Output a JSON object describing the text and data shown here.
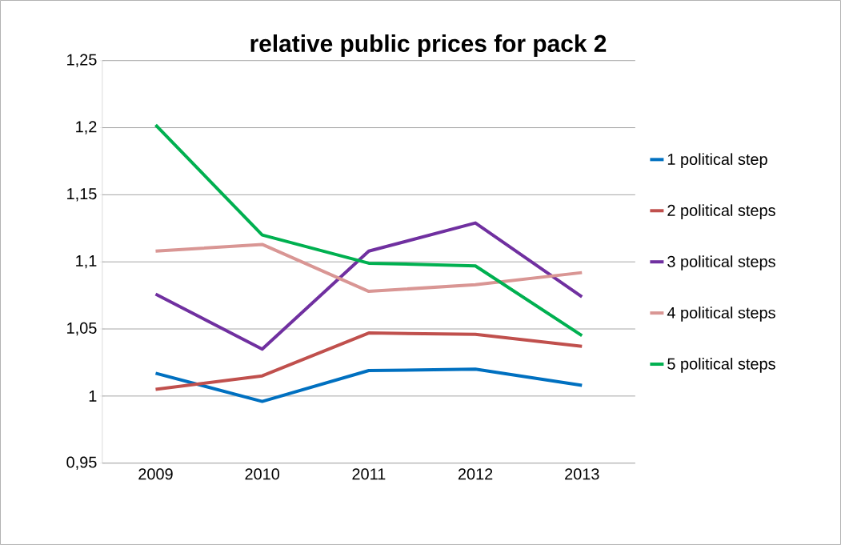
{
  "chart_data": {
    "type": "line",
    "title": "relative public prices for pack 2",
    "categories": [
      "2009",
      "2010",
      "2011",
      "2012",
      "2013"
    ],
    "series": [
      {
        "name": "1 political step",
        "color": "#0070c0",
        "values": [
          1.017,
          0.996,
          1.019,
          1.02,
          1.008
        ]
      },
      {
        "name": "2 political steps",
        "color": "#c0504d",
        "values": [
          1.005,
          1.015,
          1.047,
          1.046,
          1.037
        ]
      },
      {
        "name": "3 political steps",
        "color": "#7030a0",
        "values": [
          1.076,
          1.035,
          1.108,
          1.129,
          1.074
        ]
      },
      {
        "name": "4 political steps",
        "color": "#d99694",
        "values": [
          1.108,
          1.113,
          1.078,
          1.083,
          1.092
        ]
      },
      {
        "name": "5 political steps",
        "color": "#00b050",
        "values": [
          1.202,
          1.12,
          1.099,
          1.097,
          1.045
        ]
      }
    ],
    "ylim": [
      0.95,
      1.25
    ],
    "yticks": [
      {
        "value": 0.95,
        "label": "0,95"
      },
      {
        "value": 1.0,
        "label": "1"
      },
      {
        "value": 1.05,
        "label": "1,05"
      },
      {
        "value": 1.1,
        "label": "1,1"
      },
      {
        "value": 1.15,
        "label": "1,15"
      },
      {
        "value": 1.2,
        "label": "1,2"
      },
      {
        "value": 1.25,
        "label": "1,25"
      }
    ],
    "grid": "y",
    "legend": "right",
    "marker": "none",
    "line_style": "solid"
  }
}
